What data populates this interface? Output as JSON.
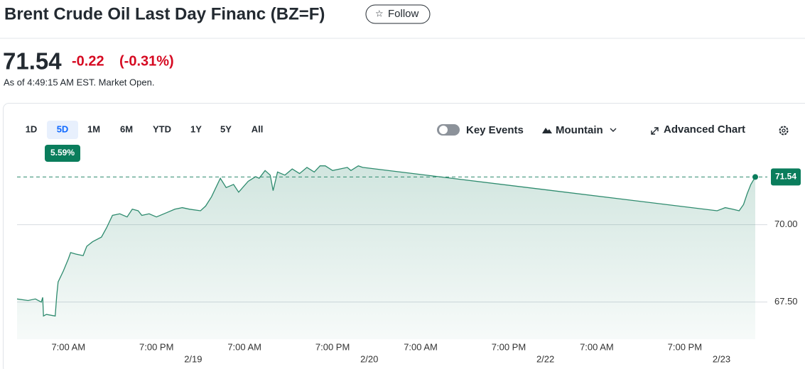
{
  "header": {
    "title": "Brent Crude Oil Last Day Financ (BZ=F)",
    "follow": "Follow"
  },
  "quote": {
    "price": "71.54",
    "change": "-0.22",
    "change_pct": "(-0.31%)",
    "as_of": "As of 4:49:15 AM EST. Market Open."
  },
  "toolbar": {
    "ranges": [
      "1D",
      "5D",
      "1M",
      "6M",
      "YTD",
      "1Y",
      "5Y",
      "All"
    ],
    "range_badge": "5.59%",
    "key_events": "Key Events",
    "chart_type": "Mountain",
    "advanced": "Advanced Chart"
  },
  "chart_data": {
    "type": "area",
    "color": "#2e8b6e",
    "x": [
      0,
      1.5,
      2.5,
      3.3,
      3.5,
      3.6,
      4,
      5.2,
      5.4,
      5.6,
      6.3,
      7,
      7.3,
      8,
      9,
      9.5,
      10.3,
      11.5,
      12.2,
      13,
      14,
      15,
      15.7,
      16.5,
      17,
      18,
      19,
      20.5,
      21.5,
      22.5,
      23.5,
      25,
      25.7,
      26.5,
      27.7,
      28.5,
      29.5,
      30.2,
      31.5,
      32.5,
      33,
      33.8,
      34.5,
      34.9,
      35.5,
      36.5,
      37.5,
      38.5,
      39.5,
      40.5,
      41.3,
      42,
      43,
      44,
      45,
      45.5,
      46.5,
      47.1,
      95.4,
      96.5,
      97.5,
      98.4,
      99,
      99.5,
      100,
      100.6
    ],
    "values": [
      67.6,
      67.55,
      67.6,
      67.5,
      67.65,
      67.05,
      67.1,
      67.05,
      67.7,
      68.15,
      68.5,
      68.9,
      69.1,
      69.05,
      69.0,
      69.3,
      69.45,
      69.6,
      69.9,
      70.3,
      70.35,
      70.25,
      70.5,
      70.45,
      70.3,
      70.35,
      70.25,
      70.4,
      70.5,
      70.55,
      70.5,
      70.45,
      70.6,
      70.9,
      71.5,
      71.2,
      71.3,
      71.05,
      71.4,
      71.55,
      71.5,
      71.75,
      71.6,
      71.1,
      71.7,
      71.6,
      71.8,
      71.65,
      71.85,
      71.7,
      71.9,
      71.9,
      71.75,
      71.8,
      71.85,
      71.75,
      71.9,
      71.85,
      70.45,
      70.55,
      70.5,
      70.45,
      70.65,
      71.0,
      71.3,
      71.54
    ],
    "last_value_label": "71.54",
    "xlim": [
      0,
      100.6
    ],
    "ylim": [
      66.3,
      72.1
    ],
    "yticks": [
      {
        "value": 70,
        "label": "70.00"
      },
      {
        "value": 67.5,
        "label": "67.50"
      }
    ],
    "xticks": [
      {
        "value": 7,
        "label": "7:00 AM"
      },
      {
        "value": 19,
        "label": "7:00 PM"
      },
      {
        "value": 31,
        "label": "7:00 AM"
      },
      {
        "value": 43,
        "label": "7:00 PM"
      },
      {
        "value": 55,
        "label": "7:00 AM"
      },
      {
        "value": 67,
        "label": "7:00 PM"
      },
      {
        "value": 79,
        "label": "7:00 AM"
      },
      {
        "value": 91,
        "label": "7:00 PM"
      }
    ],
    "date_ticks": [
      {
        "value": 24,
        "label": "2/19"
      },
      {
        "value": 48,
        "label": "2/20"
      },
      {
        "value": 72,
        "label": "2/22"
      },
      {
        "value": 96,
        "label": "2/23"
      }
    ],
    "grid": true
  }
}
